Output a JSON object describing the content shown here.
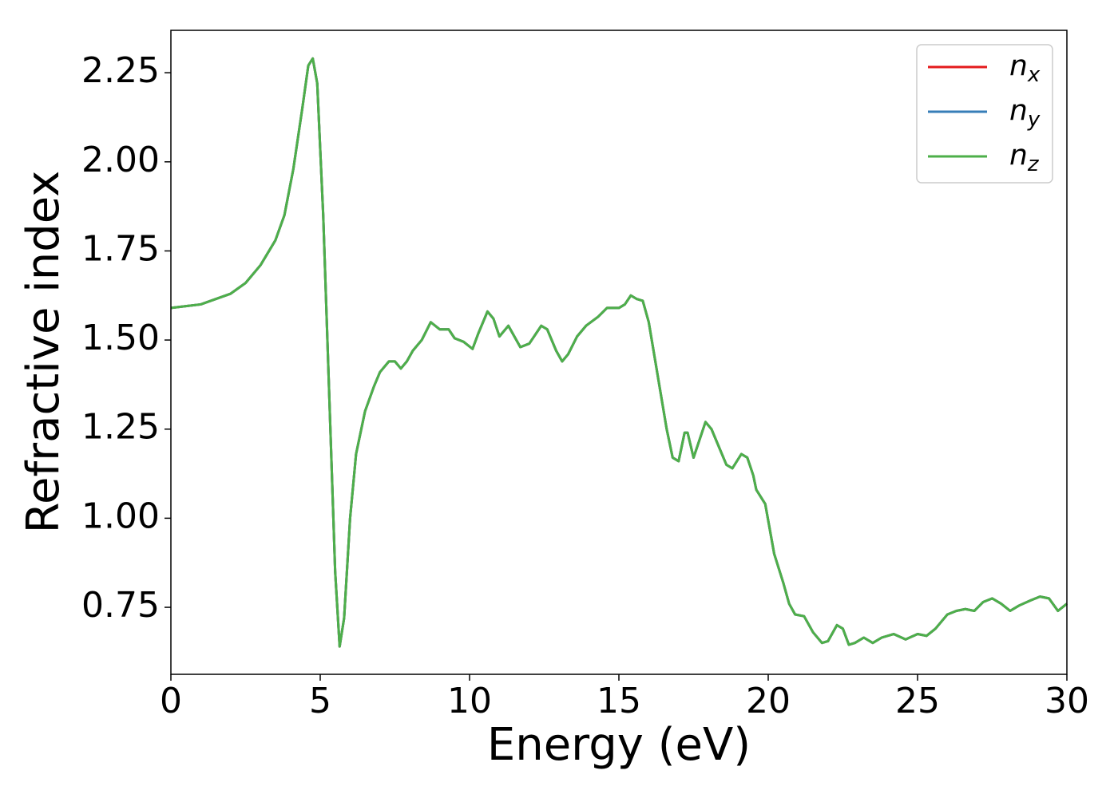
{
  "chart_data": {
    "type": "line",
    "xlabel": "Energy (eV)",
    "ylabel": "Refractive index",
    "x": [
      0,
      1,
      2,
      2.5,
      3,
      3.5,
      3.8,
      4.1,
      4.4,
      4.6,
      4.75,
      4.9,
      5.1,
      5.3,
      5.5,
      5.65,
      5.8,
      6.0,
      6.2,
      6.5,
      6.8,
      7.0,
      7.3,
      7.5,
      7.7,
      7.9,
      8.1,
      8.4,
      8.7,
      9.0,
      9.3,
      9.5,
      9.8,
      10.1,
      10.3,
      10.6,
      10.8,
      11.0,
      11.3,
      11.5,
      11.7,
      12.0,
      12.4,
      12.6,
      12.9,
      13.1,
      13.3,
      13.6,
      13.9,
      14.3,
      14.6,
      15.0,
      15.2,
      15.4,
      15.6,
      15.8,
      16.0,
      16.2,
      16.4,
      16.6,
      16.8,
      17.0,
      17.2,
      17.3,
      17.5,
      17.7,
      17.9,
      18.1,
      18.3,
      18.6,
      18.8,
      19.1,
      19.3,
      19.5,
      19.6,
      19.9,
      20.2,
      20.5,
      20.7,
      20.9,
      21.2,
      21.5,
      21.8,
      22.0,
      22.3,
      22.5,
      22.7,
      22.9,
      23.2,
      23.5,
      23.8,
      24.2,
      24.6,
      25.0,
      25.3,
      25.6,
      26.0,
      26.3,
      26.6,
      26.9,
      27.2,
      27.5,
      27.8,
      28.1,
      28.4,
      28.8,
      29.1,
      29.4,
      29.7,
      30.0
    ],
    "series": [
      {
        "name": "n_x",
        "color": "#e41a1c",
        "values": [
          1.59,
          1.6,
          1.63,
          1.66,
          1.71,
          1.78,
          1.85,
          1.98,
          2.15,
          2.27,
          2.29,
          2.22,
          1.85,
          1.35,
          0.85,
          0.64,
          0.72,
          1.0,
          1.18,
          1.3,
          1.37,
          1.41,
          1.44,
          1.44,
          1.42,
          1.44,
          1.47,
          1.5,
          1.55,
          1.53,
          1.53,
          1.505,
          1.495,
          1.475,
          1.52,
          1.58,
          1.56,
          1.51,
          1.54,
          1.51,
          1.48,
          1.49,
          1.54,
          1.53,
          1.47,
          1.44,
          1.46,
          1.51,
          1.54,
          1.565,
          1.59,
          1.59,
          1.6,
          1.625,
          1.615,
          1.61,
          1.55,
          1.45,
          1.35,
          1.25,
          1.17,
          1.16,
          1.24,
          1.24,
          1.17,
          1.22,
          1.27,
          1.25,
          1.21,
          1.15,
          1.14,
          1.18,
          1.17,
          1.12,
          1.08,
          1.04,
          0.9,
          0.82,
          0.76,
          0.73,
          0.725,
          0.68,
          0.65,
          0.655,
          0.7,
          0.69,
          0.645,
          0.65,
          0.665,
          0.65,
          0.665,
          0.675,
          0.66,
          0.675,
          0.67,
          0.69,
          0.73,
          0.74,
          0.745,
          0.74,
          0.765,
          0.775,
          0.76,
          0.74,
          0.755,
          0.77,
          0.78,
          0.775,
          0.74,
          0.76
        ]
      },
      {
        "name": "n_y",
        "color": "#377eb8",
        "values": [
          1.59,
          1.6,
          1.63,
          1.66,
          1.71,
          1.78,
          1.85,
          1.98,
          2.15,
          2.27,
          2.29,
          2.22,
          1.85,
          1.35,
          0.85,
          0.64,
          0.72,
          1.0,
          1.18,
          1.3,
          1.37,
          1.41,
          1.44,
          1.44,
          1.42,
          1.44,
          1.47,
          1.5,
          1.55,
          1.53,
          1.53,
          1.505,
          1.495,
          1.475,
          1.52,
          1.58,
          1.56,
          1.51,
          1.54,
          1.51,
          1.48,
          1.49,
          1.54,
          1.53,
          1.47,
          1.44,
          1.46,
          1.51,
          1.54,
          1.565,
          1.59,
          1.59,
          1.6,
          1.625,
          1.615,
          1.61,
          1.55,
          1.45,
          1.35,
          1.25,
          1.17,
          1.16,
          1.24,
          1.24,
          1.17,
          1.22,
          1.27,
          1.25,
          1.21,
          1.15,
          1.14,
          1.18,
          1.17,
          1.12,
          1.08,
          1.04,
          0.9,
          0.82,
          0.76,
          0.73,
          0.725,
          0.68,
          0.65,
          0.655,
          0.7,
          0.69,
          0.645,
          0.65,
          0.665,
          0.65,
          0.665,
          0.675,
          0.66,
          0.675,
          0.67,
          0.69,
          0.73,
          0.74,
          0.745,
          0.74,
          0.765,
          0.775,
          0.76,
          0.74,
          0.755,
          0.77,
          0.78,
          0.775,
          0.74,
          0.76
        ]
      },
      {
        "name": "n_z",
        "color": "#4daf4a",
        "values": [
          1.59,
          1.6,
          1.63,
          1.66,
          1.71,
          1.78,
          1.85,
          1.98,
          2.15,
          2.27,
          2.29,
          2.22,
          1.85,
          1.35,
          0.85,
          0.64,
          0.72,
          1.0,
          1.18,
          1.3,
          1.37,
          1.41,
          1.44,
          1.44,
          1.42,
          1.44,
          1.47,
          1.5,
          1.55,
          1.53,
          1.53,
          1.505,
          1.495,
          1.475,
          1.52,
          1.58,
          1.56,
          1.51,
          1.54,
          1.51,
          1.48,
          1.49,
          1.54,
          1.53,
          1.47,
          1.44,
          1.46,
          1.51,
          1.54,
          1.565,
          1.59,
          1.59,
          1.6,
          1.625,
          1.615,
          1.61,
          1.55,
          1.45,
          1.35,
          1.25,
          1.17,
          1.16,
          1.24,
          1.24,
          1.17,
          1.22,
          1.27,
          1.25,
          1.21,
          1.15,
          1.14,
          1.18,
          1.17,
          1.12,
          1.08,
          1.04,
          0.9,
          0.82,
          0.76,
          0.73,
          0.725,
          0.68,
          0.65,
          0.655,
          0.7,
          0.69,
          0.645,
          0.65,
          0.665,
          0.65,
          0.665,
          0.675,
          0.66,
          0.675,
          0.67,
          0.69,
          0.73,
          0.74,
          0.745,
          0.74,
          0.765,
          0.775,
          0.76,
          0.74,
          0.755,
          0.77,
          0.78,
          0.775,
          0.74,
          0.76
        ]
      }
    ],
    "xlim": [
      0,
      30
    ],
    "xticks": [
      0,
      5,
      10,
      15,
      20,
      25,
      30
    ],
    "ylim": [
      0.562,
      2.369
    ],
    "yticks": [
      0.75,
      {
        "value": 1,
        "label": "1.00"
      },
      1.25,
      {
        "value": 1.5,
        "label": "1.50"
      },
      1.75,
      {
        "value": 2,
        "label": "2.00"
      },
      2.25
    ],
    "grid": false,
    "legend": "upper right"
  }
}
